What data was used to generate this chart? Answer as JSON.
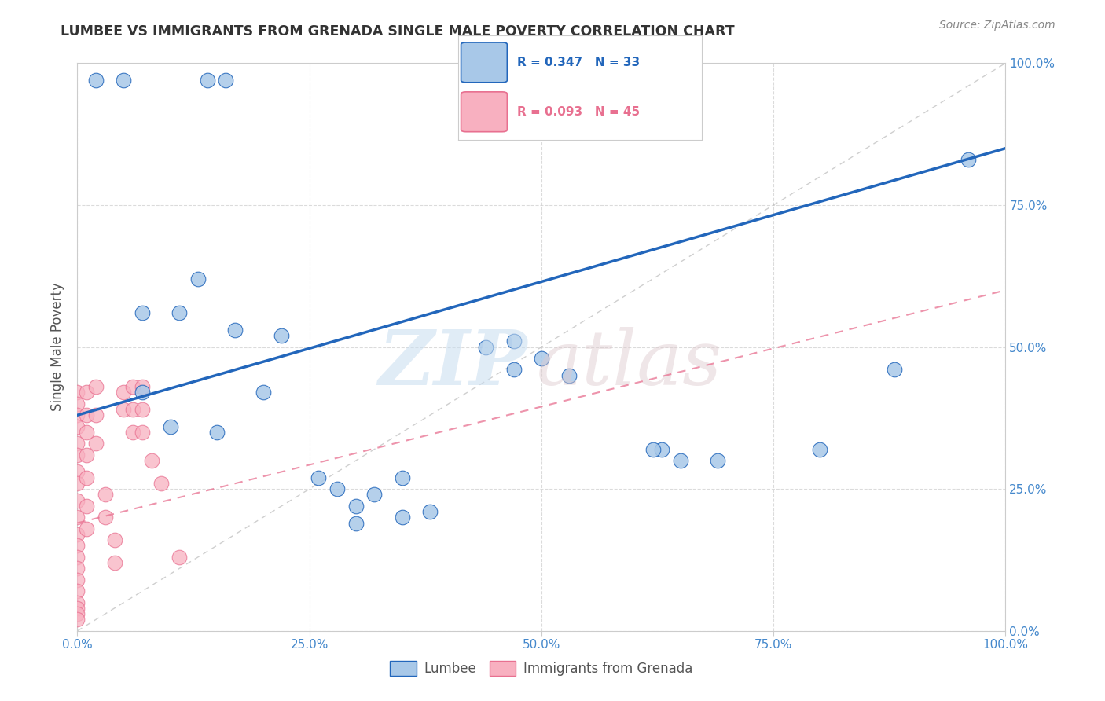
{
  "title": "LUMBEE VS IMMIGRANTS FROM GRENADA SINGLE MALE POVERTY CORRELATION CHART",
  "source_text": "Source: ZipAtlas.com",
  "ylabel": "Single Male Poverty",
  "watermark_zip": "ZIP",
  "watermark_atlas": "atlas",
  "xlim": [
    0.0,
    1.0
  ],
  "ylim": [
    0.0,
    1.0
  ],
  "lumbee_R": 0.347,
  "lumbee_N": 33,
  "grenada_R": 0.093,
  "grenada_N": 45,
  "lumbee_color": "#a8c8e8",
  "lumbee_line_color": "#2266bb",
  "grenada_color": "#f8b0c0",
  "grenada_line_color": "#e87090",
  "lumbee_x": [
    0.02,
    0.05,
    0.14,
    0.16,
    0.07,
    0.11,
    0.13,
    0.07,
    0.1,
    0.15,
    0.17,
    0.22,
    0.3,
    0.3,
    0.35,
    0.38,
    0.44,
    0.47,
    0.47,
    0.5,
    0.53,
    0.63,
    0.65,
    0.8,
    0.88,
    0.96,
    0.2,
    0.26,
    0.28,
    0.32,
    0.35,
    0.62,
    0.69
  ],
  "lumbee_y": [
    0.97,
    0.97,
    0.97,
    0.97,
    0.56,
    0.56,
    0.62,
    0.42,
    0.36,
    0.35,
    0.53,
    0.52,
    0.22,
    0.19,
    0.2,
    0.21,
    0.5,
    0.51,
    0.46,
    0.48,
    0.45,
    0.32,
    0.3,
    0.32,
    0.46,
    0.83,
    0.42,
    0.27,
    0.25,
    0.24,
    0.27,
    0.32,
    0.3
  ],
  "grenada_x": [
    0.0,
    0.0,
    0.0,
    0.0,
    0.0,
    0.0,
    0.0,
    0.0,
    0.0,
    0.0,
    0.0,
    0.0,
    0.0,
    0.0,
    0.0,
    0.0,
    0.0,
    0.0,
    0.0,
    0.0,
    0.01,
    0.01,
    0.01,
    0.01,
    0.01,
    0.01,
    0.01,
    0.02,
    0.02,
    0.02,
    0.03,
    0.03,
    0.04,
    0.04,
    0.05,
    0.05,
    0.06,
    0.06,
    0.06,
    0.07,
    0.07,
    0.07,
    0.08,
    0.09,
    0.11
  ],
  "grenada_y": [
    0.42,
    0.4,
    0.38,
    0.36,
    0.33,
    0.31,
    0.28,
    0.26,
    0.23,
    0.2,
    0.17,
    0.15,
    0.13,
    0.11,
    0.09,
    0.07,
    0.05,
    0.04,
    0.03,
    0.02,
    0.42,
    0.38,
    0.35,
    0.31,
    0.27,
    0.22,
    0.18,
    0.43,
    0.38,
    0.33,
    0.24,
    0.2,
    0.16,
    0.12,
    0.42,
    0.39,
    0.43,
    0.39,
    0.35,
    0.43,
    0.39,
    0.35,
    0.3,
    0.26,
    0.13
  ],
  "lumbee_line_x0": 0.0,
  "lumbee_line_y0": 0.38,
  "lumbee_line_x1": 1.0,
  "lumbee_line_y1": 0.85,
  "grenada_line_x0": 0.0,
  "grenada_line_y0": 0.19,
  "grenada_line_x1": 1.0,
  "grenada_line_y1": 0.6,
  "grid_color": "#cccccc",
  "background_color": "#ffffff",
  "title_color": "#333333",
  "tick_label_color": "#4488cc"
}
